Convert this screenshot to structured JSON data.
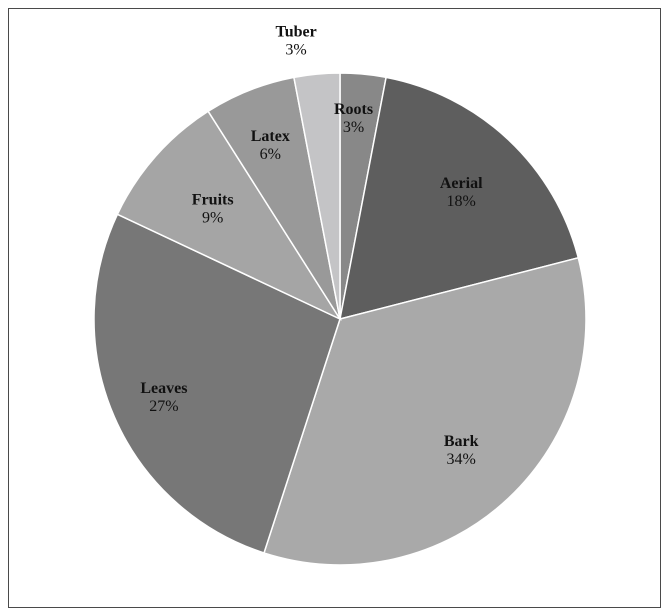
{
  "chart_data": {
    "type": "pie",
    "title": "",
    "start": "12 o'clock",
    "direction": "clockwise",
    "legend": "none",
    "slices": [
      {
        "label": "Roots",
        "value": 3,
        "value_label": "3%",
        "color": "#888888"
      },
      {
        "label": "Aerial",
        "value": 18,
        "value_label": "18%",
        "color": "#5e5e5e"
      },
      {
        "label": "Bark",
        "value": 34,
        "value_label": "34%",
        "color": "#a9a9a9"
      },
      {
        "label": "Leaves",
        "value": 27,
        "value_label": "27%",
        "color": "#777777"
      },
      {
        "label": "Fruits",
        "value": 9,
        "value_label": "9%",
        "color": "#a5a5a5"
      },
      {
        "label": "Latex",
        "value": 6,
        "value_label": "6%",
        "color": "#999999"
      },
      {
        "label": "Tuber",
        "value": 3,
        "value_label": "3%",
        "color": "#c4c4c6"
      }
    ]
  }
}
